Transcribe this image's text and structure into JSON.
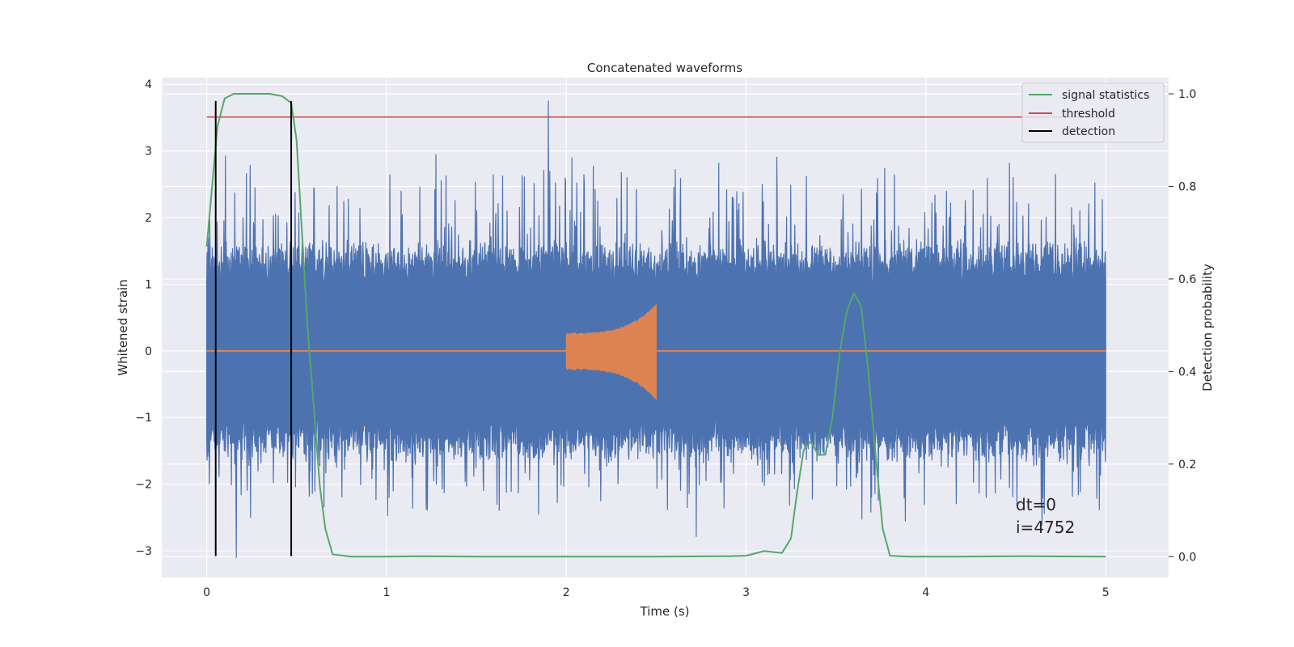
{
  "chart_data": {
    "type": "line",
    "title": "Concatenated waveforms",
    "xlabel": "Time (s)",
    "ylabel": "Whitened strain",
    "y2label": "Detection probability",
    "xlim": [
      -0.25,
      5.35
    ],
    "ylim": [
      -3.4,
      4.1
    ],
    "y2lim": [
      -0.045,
      1.035
    ],
    "xticks": [
      0,
      1,
      2,
      3,
      4,
      5
    ],
    "yticks": [
      -3,
      -2,
      -1,
      0,
      1,
      2,
      3,
      4
    ],
    "y2ticks": [
      0.0,
      0.2,
      0.4,
      0.6,
      0.8,
      1.0
    ],
    "ytick_labels": [
      "−3",
      "−2",
      "−1",
      "0",
      "1",
      "2",
      "3",
      "4"
    ],
    "y2tick_labels": [
      "0.0",
      "0.2",
      "0.4",
      "0.6",
      "0.8",
      "1.0"
    ],
    "grid": true,
    "legend_position": "top-right",
    "series": [
      {
        "kind": "noise",
        "axis": "left",
        "x_range": [
          0,
          5
        ],
        "color": "#4c72b0",
        "band_envelope": 1.0,
        "peak_upper": 3.75,
        "peak_lower": -3.1
      },
      {
        "kind": "chirp",
        "axis": "left",
        "x_range": [
          2.0,
          2.5
        ],
        "color": "#dd8452",
        "amplitude_start": 0.25,
        "amplitude_end": 0.68
      },
      {
        "name": "signal statistics",
        "axis": "right",
        "color": "#55a868",
        "x": [
          0.0,
          0.03,
          0.06,
          0.1,
          0.15,
          0.25,
          0.35,
          0.42,
          0.47,
          0.5,
          0.53,
          0.56,
          0.6,
          0.63,
          0.66,
          0.7,
          0.8,
          1.0,
          1.2,
          1.5,
          2.0,
          2.5,
          2.9,
          3.0,
          3.1,
          3.2,
          3.25,
          3.28,
          3.32,
          3.36,
          3.4,
          3.44,
          3.48,
          3.52,
          3.56,
          3.6,
          3.64,
          3.68,
          3.72,
          3.76,
          3.8,
          3.9,
          4.2,
          4.5,
          5.0
        ],
        "y": [
          0.67,
          0.8,
          0.93,
          0.99,
          1.0,
          1.0,
          1.0,
          0.995,
          0.98,
          0.9,
          0.7,
          0.5,
          0.3,
          0.15,
          0.06,
          0.005,
          0.0,
          0.0,
          0.001,
          0.0,
          0.0,
          0.0,
          0.001,
          0.002,
          0.012,
          0.008,
          0.04,
          0.13,
          0.23,
          0.25,
          0.22,
          0.22,
          0.3,
          0.44,
          0.53,
          0.57,
          0.54,
          0.4,
          0.22,
          0.06,
          0.002,
          0.0,
          0.0,
          0.001,
          0.0
        ]
      },
      {
        "name": "threshold",
        "axis": "right",
        "color": "#c44e52",
        "x": [
          0,
          5
        ],
        "y": [
          0.95,
          0.95
        ]
      },
      {
        "name": "detection",
        "axis": "left",
        "color": "#000000",
        "x_positions": [
          0.05,
          0.47
        ],
        "y_range": [
          -3.08,
          3.75
        ]
      }
    ],
    "annotation": {
      "line1": "dt=0",
      "line2": "i=4752"
    }
  }
}
